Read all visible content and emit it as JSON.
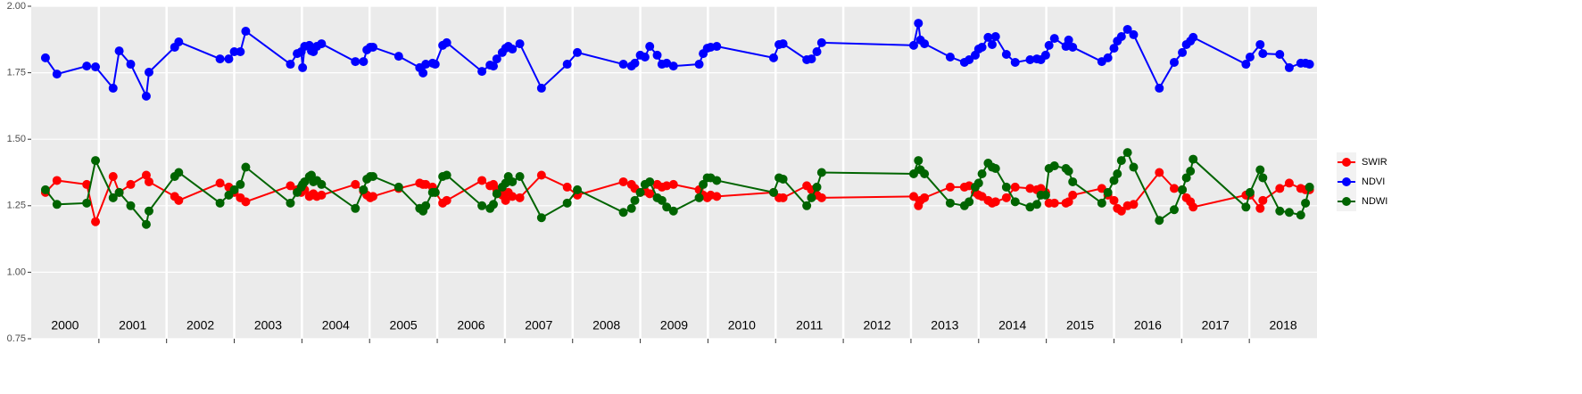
{
  "chart_data": {
    "type": "line",
    "x": [
      2000.21,
      2000.38,
      2000.82,
      2000.95,
      2001.21,
      2001.3,
      2001.47,
      2001.7,
      2001.74,
      2002.12,
      2002.18,
      2002.79,
      2002.92,
      2003.0,
      2003.09,
      2003.17,
      2003.83,
      2003.93,
      2003.99,
      2004.01,
      2004.04,
      2004.11,
      2004.14,
      2004.17,
      2004.22,
      2004.29,
      2004.79,
      2004.91,
      2004.96,
      2005.01,
      2005.05,
      2005.43,
      2005.74,
      2005.79,
      2005.83,
      2005.93,
      2005.97,
      2006.08,
      2006.14,
      2006.66,
      2006.78,
      2006.83,
      2006.88,
      2006.96,
      2007.01,
      2007.05,
      2007.11,
      2007.22,
      2007.54,
      2007.92,
      2008.07,
      2008.75,
      2008.87,
      2008.92,
      2009.0,
      2009.07,
      2009.14,
      2009.25,
      2009.32,
      2009.39,
      2009.49,
      2009.87,
      2009.93,
      2009.99,
      2010.04,
      2010.13,
      2010.97,
      2011.05,
      2011.11,
      2011.46,
      2011.53,
      2011.61,
      2011.68,
      2013.04,
      2013.11,
      2013.14,
      2013.2,
      2013.58,
      2013.79,
      2013.86,
      2013.95,
      2014.0,
      2014.05,
      2014.14,
      2014.2,
      2014.25,
      2014.41,
      2014.54,
      2014.76,
      2014.86,
      2014.92,
      2014.99,
      2015.04,
      2015.12,
      2015.29,
      2015.33,
      2015.39,
      2015.82,
      2015.91,
      2016.0,
      2016.05,
      2016.11,
      2016.2,
      2016.29,
      2016.67,
      2016.89,
      2017.01,
      2017.07,
      2017.13,
      2017.17,
      2017.95,
      2018.01,
      2018.16,
      2018.2,
      2018.45,
      2018.59,
      2018.76,
      2018.83,
      2018.89
    ],
    "series": [
      {
        "name": "SWIR",
        "color": "#ff0000",
        "values": [
          1.3,
          1.345,
          1.33,
          1.19,
          1.36,
          1.3,
          1.33,
          1.365,
          1.34,
          1.285,
          1.27,
          1.335,
          1.32,
          1.3,
          1.28,
          1.265,
          1.325,
          1.31,
          1.3,
          1.32,
          1.31,
          1.285,
          1.29,
          1.295,
          1.285,
          1.29,
          1.33,
          1.305,
          1.29,
          1.28,
          1.285,
          1.315,
          1.335,
          1.33,
          1.33,
          1.32,
          1.3,
          1.26,
          1.27,
          1.345,
          1.325,
          1.33,
          1.31,
          1.29,
          1.27,
          1.3,
          1.285,
          1.28,
          1.365,
          1.32,
          1.29,
          1.34,
          1.33,
          1.315,
          1.3,
          1.305,
          1.295,
          1.33,
          1.32,
          1.325,
          1.33,
          1.31,
          1.29,
          1.28,
          1.29,
          1.285,
          1.3,
          1.28,
          1.28,
          1.325,
          1.31,
          1.29,
          1.28,
          1.285,
          1.25,
          1.27,
          1.28,
          1.32,
          1.32,
          1.325,
          1.3,
          1.29,
          1.285,
          1.27,
          1.26,
          1.265,
          1.28,
          1.32,
          1.315,
          1.31,
          1.315,
          1.3,
          1.26,
          1.26,
          1.26,
          1.265,
          1.29,
          1.315,
          1.29,
          1.27,
          1.24,
          1.23,
          1.25,
          1.255,
          1.375,
          1.315,
          1.31,
          1.28,
          1.265,
          1.245,
          1.29,
          1.29,
          1.24,
          1.27,
          1.315,
          1.335,
          1.315,
          1.31,
          1.31
        ]
      },
      {
        "name": "NDVI",
        "color": "#0000ff",
        "values": [
          1.806,
          1.745,
          1.775,
          1.772,
          1.692,
          1.832,
          1.782,
          1.662,
          1.752,
          1.846,
          1.866,
          1.802,
          1.802,
          1.829,
          1.829,
          1.906,
          1.782,
          1.822,
          1.829,
          1.769,
          1.849,
          1.853,
          1.832,
          1.829,
          1.849,
          1.859,
          1.792,
          1.792,
          1.836,
          1.846,
          1.846,
          1.812,
          1.769,
          1.749,
          1.782,
          1.786,
          1.782,
          1.853,
          1.863,
          1.755,
          1.779,
          1.775,
          1.802,
          1.826,
          1.842,
          1.849,
          1.839,
          1.859,
          1.692,
          1.782,
          1.826,
          1.782,
          1.775,
          1.786,
          1.816,
          1.809,
          1.849,
          1.816,
          1.782,
          1.786,
          1.775,
          1.782,
          1.822,
          1.842,
          1.846,
          1.849,
          1.806,
          1.856,
          1.859,
          1.799,
          1.802,
          1.829,
          1.863,
          1.853,
          1.936,
          1.873,
          1.859,
          1.809,
          1.789,
          1.799,
          1.816,
          1.839,
          1.846,
          1.883,
          1.856,
          1.886,
          1.819,
          1.789,
          1.799,
          1.802,
          1.799,
          1.816,
          1.853,
          1.879,
          1.849,
          1.873,
          1.846,
          1.792,
          1.806,
          1.842,
          1.869,
          1.886,
          1.913,
          1.893,
          1.692,
          1.789,
          1.826,
          1.856,
          1.869,
          1.883,
          1.782,
          1.809,
          1.856,
          1.822,
          1.819,
          1.769,
          1.786,
          1.786,
          1.782
        ]
      },
      {
        "name": "NDWI",
        "color": "#006400",
        "values": [
          1.31,
          1.255,
          1.26,
          1.42,
          1.28,
          1.3,
          1.25,
          1.18,
          1.23,
          1.36,
          1.375,
          1.26,
          1.29,
          1.31,
          1.33,
          1.395,
          1.26,
          1.3,
          1.32,
          1.33,
          1.34,
          1.36,
          1.365,
          1.34,
          1.345,
          1.33,
          1.24,
          1.31,
          1.35,
          1.36,
          1.36,
          1.32,
          1.24,
          1.23,
          1.25,
          1.3,
          1.3,
          1.36,
          1.365,
          1.25,
          1.24,
          1.255,
          1.295,
          1.32,
          1.335,
          1.36,
          1.34,
          1.36,
          1.205,
          1.26,
          1.31,
          1.225,
          1.24,
          1.27,
          1.3,
          1.33,
          1.34,
          1.28,
          1.27,
          1.245,
          1.23,
          1.28,
          1.33,
          1.355,
          1.355,
          1.345,
          1.3,
          1.355,
          1.35,
          1.25,
          1.28,
          1.32,
          1.375,
          1.37,
          1.42,
          1.385,
          1.37,
          1.26,
          1.25,
          1.265,
          1.32,
          1.335,
          1.37,
          1.41,
          1.395,
          1.39,
          1.32,
          1.265,
          1.245,
          1.255,
          1.29,
          1.29,
          1.39,
          1.4,
          1.39,
          1.38,
          1.34,
          1.26,
          1.3,
          1.345,
          1.37,
          1.42,
          1.45,
          1.395,
          1.195,
          1.235,
          1.31,
          1.355,
          1.38,
          1.425,
          1.245,
          1.3,
          1.385,
          1.355,
          1.23,
          1.225,
          1.215,
          1.26,
          1.32
        ]
      }
    ],
    "xlim": [
      2000.0,
      2019.0
    ],
    "year_bands": [
      2000,
      2001,
      2002,
      2003,
      2004,
      2005,
      2006,
      2007,
      2008,
      2009,
      2010,
      2011,
      2012,
      2013,
      2014,
      2015,
      2016,
      2017,
      2018
    ],
    "ylim": [
      0.75,
      2.0
    ],
    "yticks": [
      {
        "value": 0.75,
        "label": "0.75"
      },
      {
        "value": 1.0,
        "label": "1.00"
      },
      {
        "value": 1.25,
        "label": "1.25"
      },
      {
        "value": 1.5,
        "label": "1.50"
      },
      {
        "value": 1.75,
        "label": "1.75"
      },
      {
        "value": 2.0,
        "label": "2.00"
      }
    ],
    "grid": true,
    "legend": "right"
  }
}
